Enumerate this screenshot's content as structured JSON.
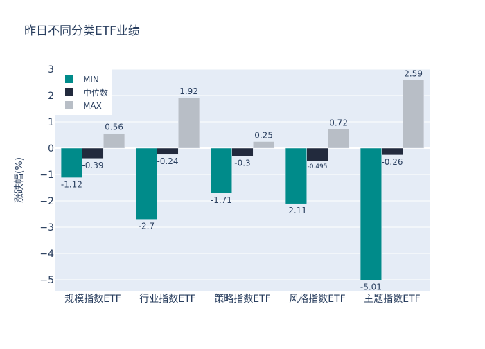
{
  "chart_data": {
    "type": "bar",
    "title": "昨日不同分类ETF业绩",
    "xlabel": "",
    "ylabel": "涨跌幅(%)",
    "ylim": [
      -5.42,
      3.0
    ],
    "yticks": [
      3,
      2,
      1,
      0,
      -1,
      -2,
      -3,
      -4,
      -5
    ],
    "ytick_labels": [
      "3",
      "2",
      "1",
      "0",
      "−1",
      "−2",
      "−3",
      "−4",
      "−5"
    ],
    "grid": true,
    "legend_position": "top-left",
    "categories": [
      "规模指数ETF",
      "行业指数ETF",
      "策略指数ETF",
      "风格指数ETF",
      "主题指数ETF"
    ],
    "series": [
      {
        "name": "MIN",
        "color": "#008b8a",
        "values": [
          -1.12,
          -2.7,
          -1.71,
          -2.11,
          -5.01
        ],
        "labels": [
          "-1.12",
          "-2.7",
          "-1.71",
          "-2.11",
          "-5.01"
        ]
      },
      {
        "name": "中位数",
        "color": "#222a3d",
        "values": [
          -0.39,
          -0.24,
          -0.3,
          -0.495,
          -0.26
        ],
        "labels": [
          "-0.39",
          "-0.24",
          "-0.3",
          "-0.495",
          "-0.26"
        ]
      },
      {
        "name": "MAX",
        "color": "#b8bec6",
        "values": [
          0.56,
          1.92,
          0.25,
          0.72,
          2.59
        ],
        "labels": [
          "0.56",
          "1.92",
          "0.25",
          "0.72",
          "2.59"
        ]
      }
    ]
  }
}
